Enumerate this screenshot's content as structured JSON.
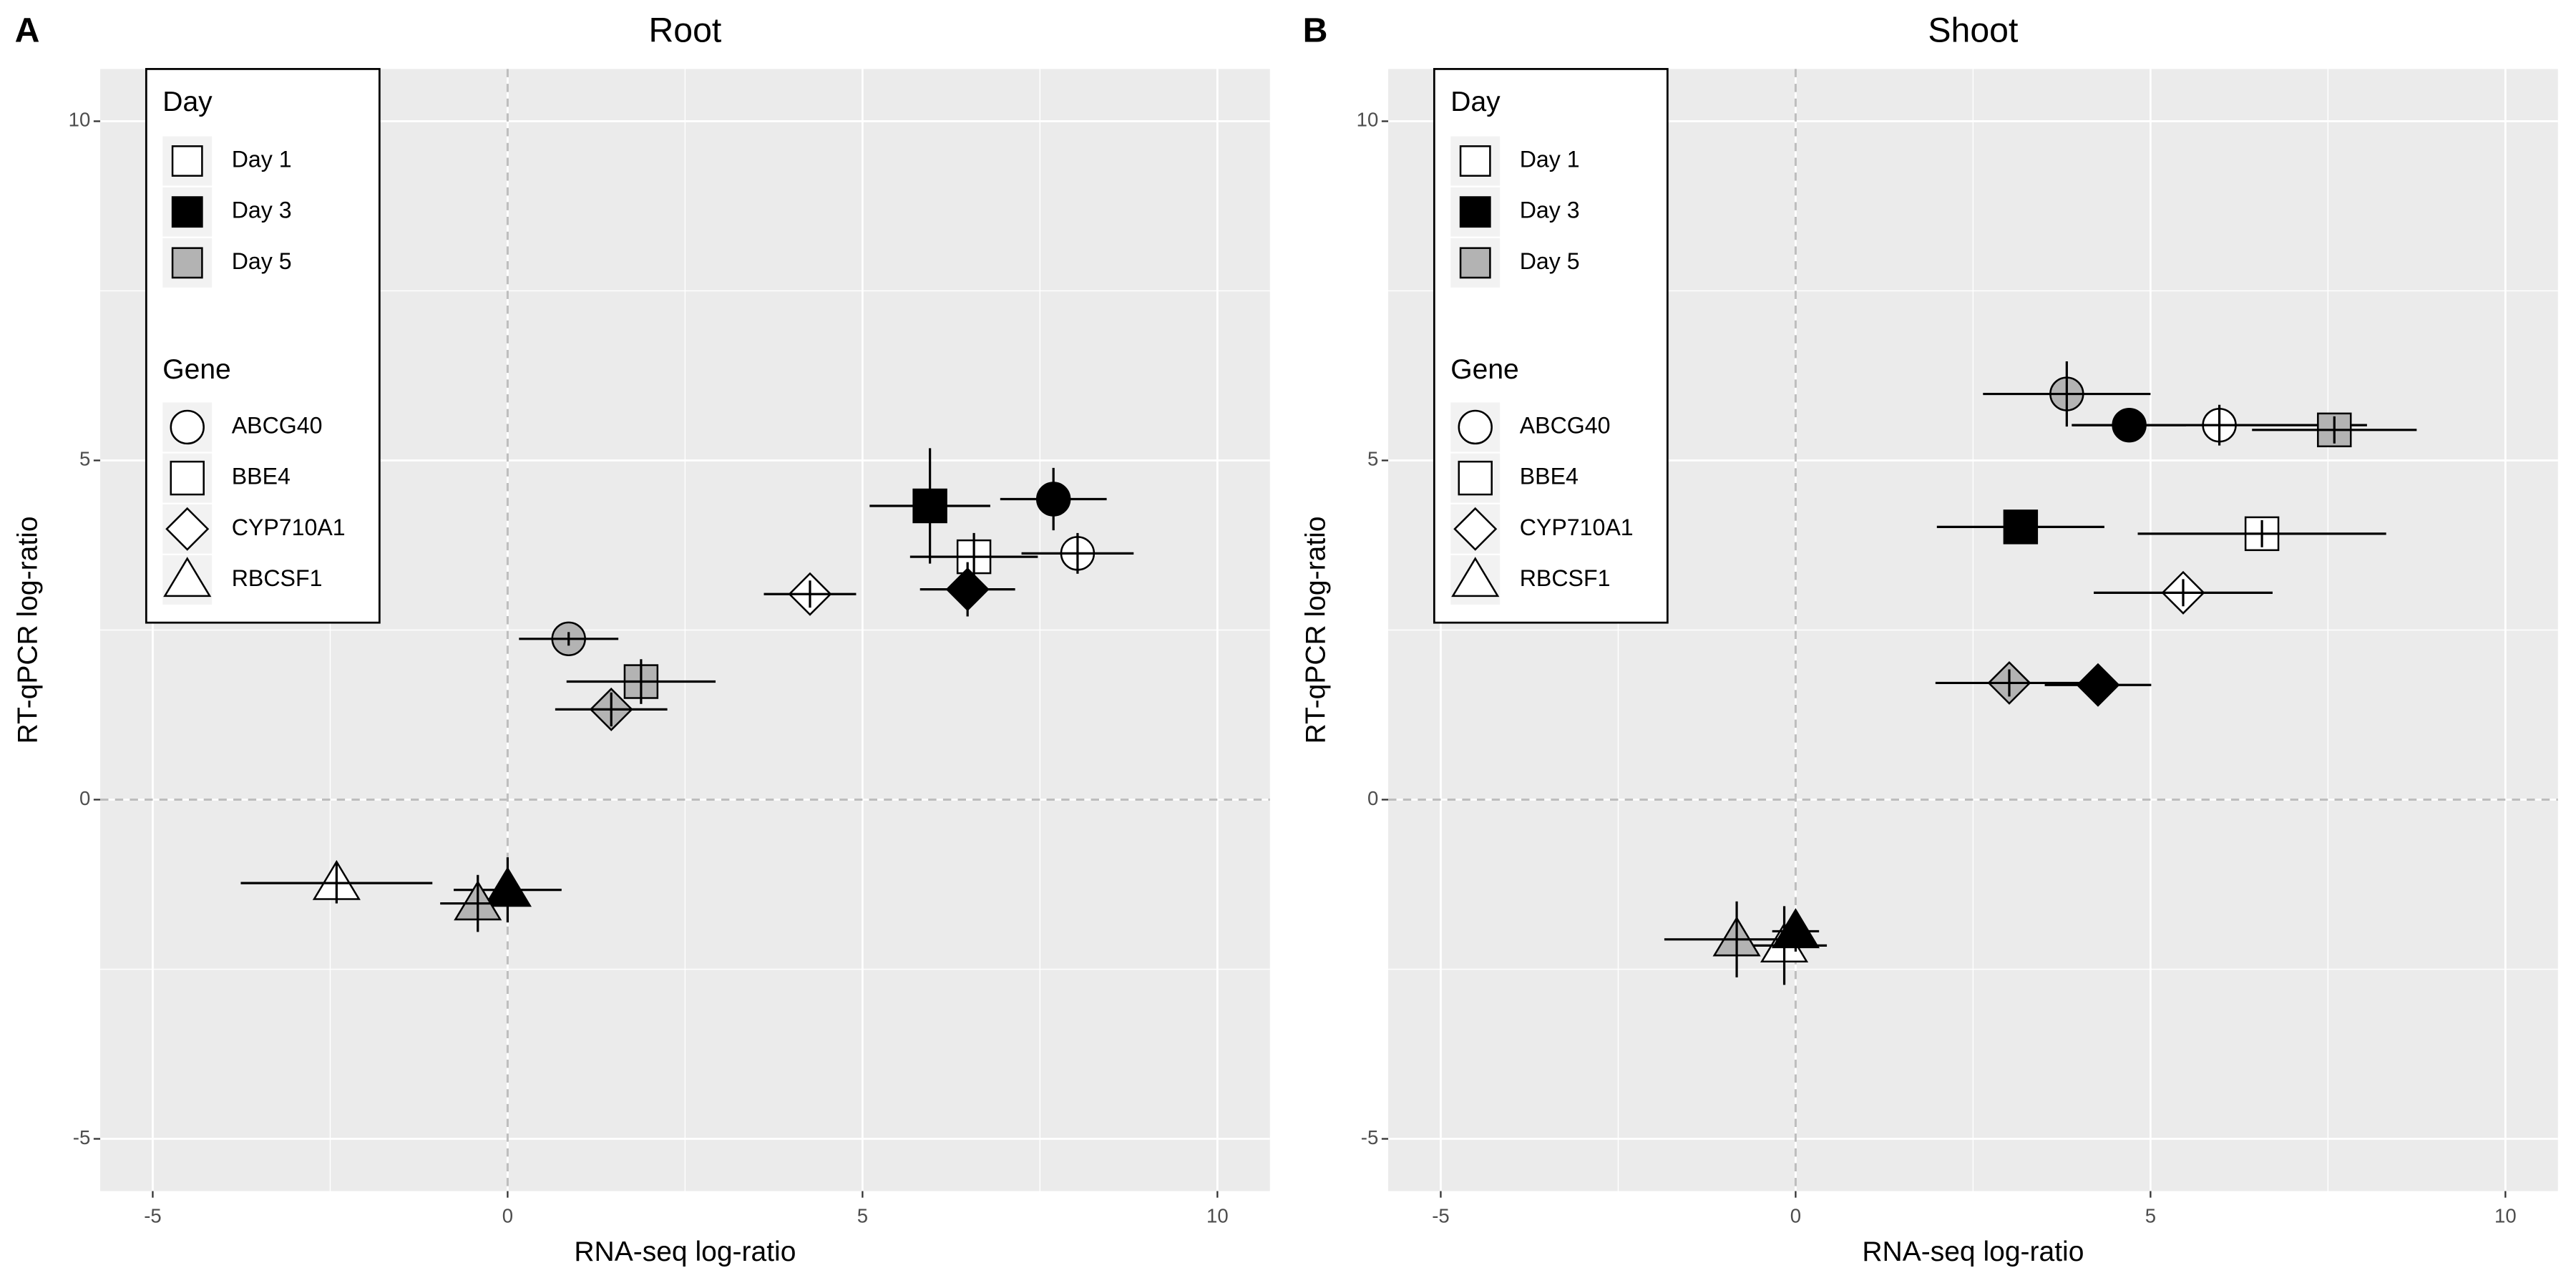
{
  "chart_data": [
    {
      "type": "scatter",
      "panel_label": "A",
      "title": "Root",
      "x_label": "RNA-seq log-ratio",
      "y_label": "RT-qPCR log-ratio",
      "xlim": [
        -5.74,
        10.74
      ],
      "ylim": [
        -5.77,
        10.77
      ],
      "xticks": [
        -5,
        0,
        5,
        10
      ],
      "yticks": [
        -5,
        0,
        5,
        10
      ],
      "x_minor_grid": [
        -2.5,
        2.5,
        7.5
      ],
      "y_minor_grid": [
        -2.5,
        2.5,
        7.5
      ],
      "zero_lines": true,
      "grid": true,
      "legend": {
        "position": "top-left",
        "day": {
          "title": "Day",
          "entries": [
            {
              "name": "Day 1",
              "fill": "#ffffff"
            },
            {
              "name": "Day 3",
              "fill": "#000000"
            },
            {
              "name": "Day 5",
              "fill": "#b3b3b3"
            }
          ]
        },
        "gene": {
          "title": "Gene",
          "entries": [
            {
              "name": "ABCG40",
              "shape": "circle"
            },
            {
              "name": "BBE4",
              "shape": "square"
            },
            {
              "name": "CYP710A1",
              "shape": "diamond"
            },
            {
              "name": "RBCSF1",
              "shape": "triangle"
            }
          ]
        }
      },
      "points": {
        "gene": [
          "ABCG40",
          "ABCG40",
          "ABCG40",
          "BBE4",
          "BBE4",
          "BBE4",
          "CYP710A1",
          "CYP710A1",
          "CYP710A1",
          "RBCSF1",
          "RBCSF1",
          "RBCSF1"
        ],
        "day": [
          "Day 1",
          "Day 3",
          "Day 5",
          "Day 1",
          "Day 3",
          "Day 5",
          "Day 1",
          "Day 3",
          "Day 5",
          "Day 1",
          "Day 3",
          "Day 5"
        ],
        "x": [
          8.03,
          7.69,
          0.86,
          6.57,
          5.95,
          1.88,
          4.26,
          6.48,
          1.46,
          -2.41,
          0.0,
          -0.42
        ],
        "y": [
          3.63,
          4.43,
          2.37,
          3.58,
          4.33,
          1.74,
          3.03,
          3.1,
          1.33,
          -1.23,
          -1.33,
          -1.53
        ],
        "xerr": [
          0.79,
          0.75,
          0.7,
          0.9,
          0.85,
          1.05,
          0.65,
          0.67,
          0.79,
          1.35,
          0.76,
          0.53
        ],
        "yerr": [
          0.3,
          0.46,
          0.1,
          0.35,
          0.85,
          0.33,
          0.2,
          0.4,
          0.25,
          0.3,
          0.48,
          0.42
        ]
      }
    },
    {
      "type": "scatter",
      "panel_label": "B",
      "title": "Shoot",
      "x_label": "RNA-seq log-ratio",
      "y_label": "RT-qPCR log-ratio",
      "xlim": [
        -5.74,
        10.74
      ],
      "ylim": [
        -5.77,
        10.77
      ],
      "xticks": [
        -5,
        0,
        5,
        10
      ],
      "yticks": [
        -5,
        0,
        5,
        10
      ],
      "x_minor_grid": [
        -2.5,
        2.5,
        7.5
      ],
      "y_minor_grid": [
        -2.5,
        2.5,
        7.5
      ],
      "zero_lines": true,
      "grid": true,
      "legend": {
        "position": "top-left",
        "day": {
          "title": "Day",
          "entries": [
            {
              "name": "Day 1",
              "fill": "#ffffff"
            },
            {
              "name": "Day 3",
              "fill": "#000000"
            },
            {
              "name": "Day 5",
              "fill": "#b3b3b3"
            }
          ]
        },
        "gene": {
          "title": "Gene",
          "entries": [
            {
              "name": "ABCG40",
              "shape": "circle"
            },
            {
              "name": "BBE4",
              "shape": "square"
            },
            {
              "name": "CYP710A1",
              "shape": "diamond"
            },
            {
              "name": "RBCSF1",
              "shape": "triangle"
            }
          ]
        }
      },
      "points": {
        "gene": [
          "ABCG40",
          "ABCG40",
          "ABCG40",
          "BBE4",
          "BBE4",
          "BBE4",
          "CYP710A1",
          "CYP710A1",
          "CYP710A1",
          "RBCSF1",
          "RBCSF1",
          "RBCSF1"
        ],
        "day": [
          "Day 1",
          "Day 3",
          "Day 5",
          "Day 1",
          "Day 3",
          "Day 5",
          "Day 1",
          "Day 3",
          "Day 5",
          "Day 1",
          "Day 3",
          "Day 5"
        ],
        "x": [
          5.97,
          4.7,
          3.82,
          6.57,
          3.17,
          7.59,
          5.46,
          4.26,
          3.01,
          -0.16,
          0.0,
          -0.83
        ],
        "y": [
          5.52,
          5.52,
          5.98,
          3.92,
          4.02,
          5.45,
          3.05,
          1.69,
          1.72,
          -2.15,
          -1.94,
          -2.06
        ],
        "xerr": [
          2.08,
          0.8,
          1.18,
          1.75,
          1.18,
          1.16,
          1.26,
          0.75,
          1.04,
          0.6,
          0.33,
          1.02
        ],
        "yerr": [
          0.3,
          0.1,
          0.48,
          0.2,
          0.1,
          0.2,
          0.2,
          0.1,
          0.2,
          0.58,
          0.3,
          0.56
        ]
      }
    }
  ]
}
